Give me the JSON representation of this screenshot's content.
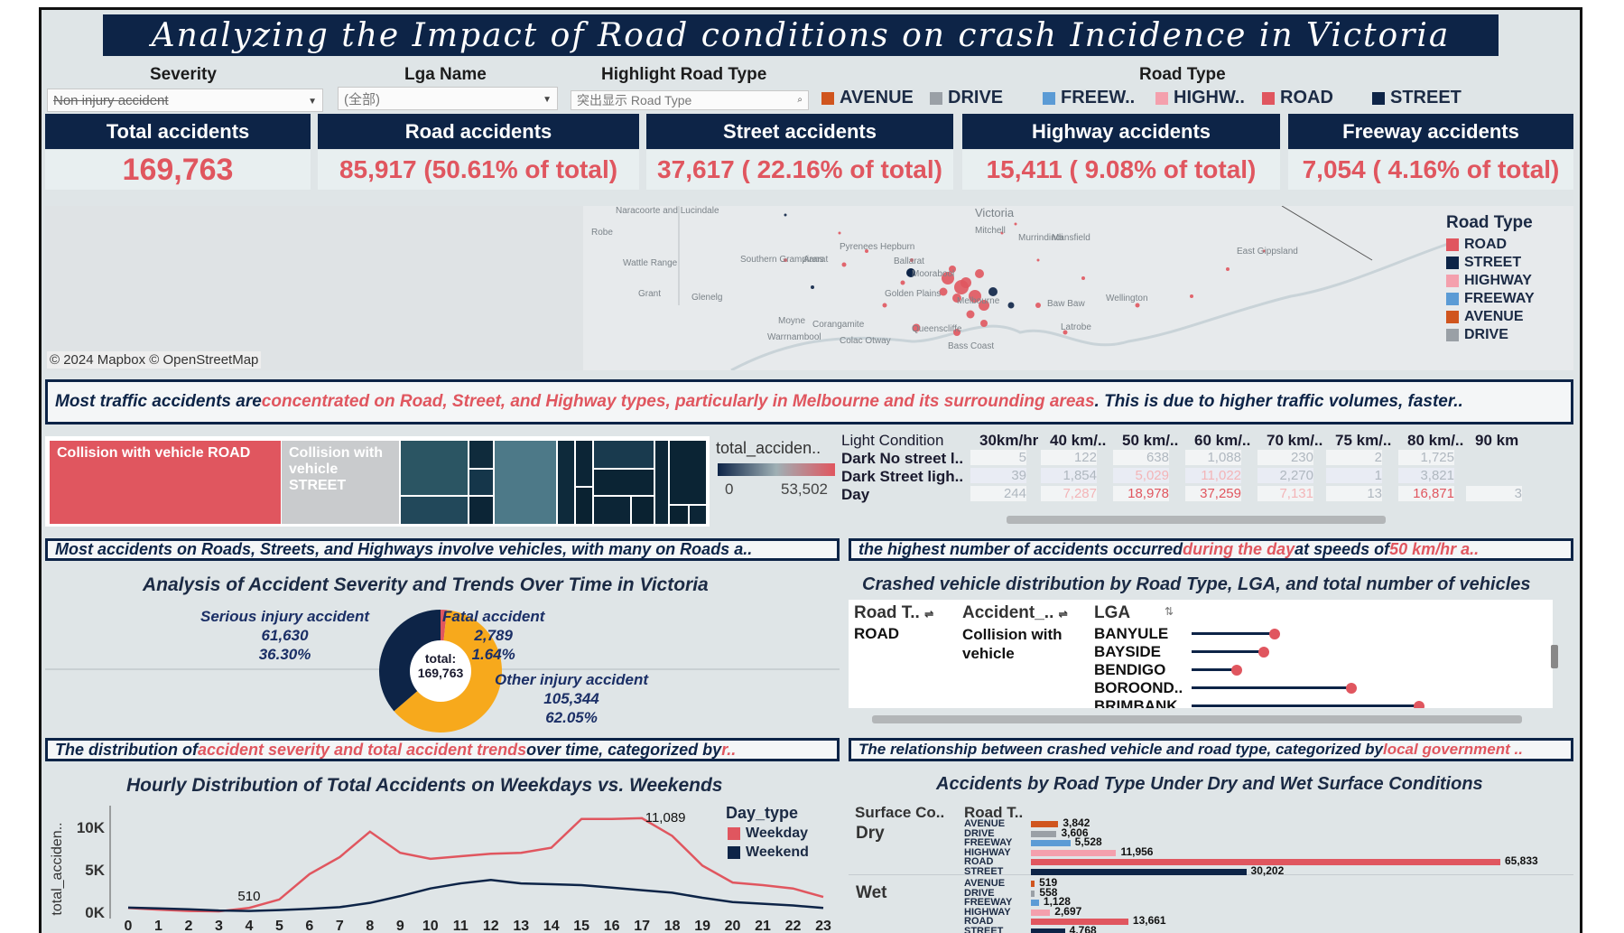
{
  "title": "Analyzing the Impact of Road conditions on crash Incidence in Victoria",
  "filters": {
    "severity_label": "Severity",
    "severity_value": "Non injury accident",
    "lga_label": "Lga Name",
    "lga_value": "(全部)",
    "highlight_label": "Highlight Road Type",
    "highlight_placeholder": "突出显示 Road Type",
    "road_type_label": "Road Type"
  },
  "road_type_legend": [
    {
      "label": "AVENUE",
      "color": "#d0551e"
    },
    {
      "label": "DRIVE",
      "color": "#9aa0a6"
    },
    {
      "label": "FREEW..",
      "color": "#5b9bd5"
    },
    {
      "label": "HIGHW..",
      "color": "#f4a0ad"
    },
    {
      "label": "ROAD",
      "color": "#e0565f"
    },
    {
      "label": "STREET",
      "color": "#0d2447"
    }
  ],
  "kpis": [
    {
      "title": "Total accidents",
      "value": "169,763"
    },
    {
      "title": "Road accidents",
      "value": "85,917 (50.61% of total)"
    },
    {
      "title": "Street accidents",
      "value": "37,617 ( 22.16% of total)"
    },
    {
      "title": "Highway accidents",
      "value": "15,411 ( 9.08% of total)"
    },
    {
      "title": "Freeway accidents",
      "value": "7,054 ( 4.16% of total)"
    }
  ],
  "map": {
    "attribution": "© 2024 Mapbox © OpenStreetMap",
    "legend_title": "Road Type",
    "legend": [
      {
        "label": "ROAD",
        "color": "#e0565f"
      },
      {
        "label": "STREET",
        "color": "#0d2447"
      },
      {
        "label": "HIGHWAY",
        "color": "#f4a0ad"
      },
      {
        "label": "FREEWAY",
        "color": "#5b9bd5"
      },
      {
        "label": "AVENUE",
        "color": "#d0551e"
      },
      {
        "label": "DRIVE",
        "color": "#9aa0a6"
      }
    ],
    "places": [
      "Victoria",
      "Robe",
      "Naracoorte and Lucindale",
      "Wattle Range",
      "Grant",
      "Glenelg",
      "Southern Grampians",
      "Ararat",
      "Pyrenees",
      "Hepburn",
      "Ballarat",
      "Moorabool",
      "Mitchell",
      "Murrindindi",
      "Mansfield",
      "East Gippsland",
      "Golden Plains",
      "Melbourne",
      "Baw Baw",
      "Wellington",
      "Moyne",
      "Warrnambool",
      "Corangamite",
      "Colac Otway",
      "Queenscliffe",
      "Latrobe",
      "Bass Coast"
    ]
  },
  "notes": {
    "map_note_a": "Most traffic accidents are ",
    "map_note_b": "concentrated on Road, Street, and Highway types, particularly in Melbourne and its surrounding areas",
    "map_note_c": ". This is due to higher traffic volumes, faster..",
    "treemap_note": "Most accidents on Roads, Streets, and Highways involve vehicles, with many on Roads a..",
    "speed_note_a": "the highest number of accidents occurred ",
    "speed_note_b": "during the day",
    "speed_note_c": " at speeds of ",
    "speed_note_d": "50 km/hr a..",
    "severity_note_a": "The distribution of ",
    "severity_note_b": "accident severity and total accident trends",
    "severity_note_c": " over time, categorized by ",
    "severity_note_d": "r..",
    "lga_note_a": "The relationship between crashed vehicle and road type, categorized by ",
    "lga_note_b": "local government .."
  },
  "treemap": {
    "label_road": "Collision with vehicle ROAD",
    "label_street": "Collision with vehicle STREET",
    "legend_title": "total_acciden..",
    "legend_min": "0",
    "legend_max": "53,502"
  },
  "speed_table": {
    "row_header": "Light Condition",
    "columns": [
      "30km/hr",
      "40 km/..",
      "50 km/..",
      "60 km/..",
      "70 km/..",
      "75 km/..",
      "80 km/..",
      "90 km"
    ],
    "rows": [
      {
        "label": "Dark No street l..",
        "values": [
          "5",
          "122",
          "638",
          "1,088",
          "230",
          "2",
          "1,725",
          ""
        ]
      },
      {
        "label": "Dark Street ligh..",
        "values": [
          "39",
          "1,854",
          "5,029",
          "11,022",
          "2,270",
          "1",
          "3,821",
          ""
        ]
      },
      {
        "label": "Day",
        "values": [
          "244",
          "7,287",
          "18,978",
          "37,259",
          "7,131",
          "13",
          "16,871",
          "3"
        ]
      }
    ]
  },
  "severity": {
    "title": "Analysis of Accident Severity and Trends Over Time in Victoria",
    "center_label": "total:",
    "center_value": "169,763",
    "serious_label": "Serious injury accident",
    "serious_value": "61,630",
    "serious_pct": "36.30%",
    "fatal_label": "Fatal accident",
    "fatal_value": "2,789",
    "fatal_pct": "1.64%",
    "other_label": "Other injury accident",
    "other_value": "105,344",
    "other_pct": "62.05%"
  },
  "lga_chart": {
    "title": "Crashed vehicle distribution by Road Type, LGA, and total number of vehicles",
    "col_road": "Road T..",
    "col_accident": "Accident_..",
    "col_lga": "LGA",
    "road_value": "ROAD",
    "accident_value": "Collision with vehicle",
    "lgas": [
      "BANYULE",
      "BAYSIDE",
      "BENDIGO",
      "BOROOND..",
      "BRIMBANK"
    ]
  },
  "chart_data": [
    {
      "type": "line",
      "title": "Hourly Distribution of Total Accidents on Weekdays vs. Weekends",
      "xlabel": "",
      "ylabel": "total_acciden..",
      "x": [
        0,
        1,
        2,
        3,
        4,
        5,
        6,
        7,
        8,
        9,
        10,
        11,
        12,
        13,
        14,
        15,
        16,
        17,
        18,
        19,
        20,
        21,
        22,
        23
      ],
      "ylim": [
        0,
        11500
      ],
      "yticks": [
        "10K",
        "5K",
        "0K"
      ],
      "legend_title": "Day_type",
      "series": [
        {
          "name": "Weekday",
          "color": "#e0565f",
          "values": [
            510,
            300,
            150,
            100,
            510,
            1500,
            4500,
            6500,
            9500,
            7000,
            6300,
            6600,
            6900,
            7000,
            7600,
            11000,
            11000,
            11089,
            9000,
            5500,
            3500,
            3200,
            2800,
            1800
          ]
        },
        {
          "name": "Weekend",
          "color": "#0d2447",
          "values": [
            550,
            450,
            350,
            200,
            150,
            250,
            400,
            600,
            1100,
            1900,
            2800,
            3400,
            3800,
            3400,
            3300,
            3200,
            2900,
            2600,
            2300,
            1700,
            1200,
            1000,
            800,
            500
          ]
        }
      ],
      "annotations": [
        "510",
        "11,089"
      ]
    },
    {
      "type": "bar",
      "title": "Accidents by Road Type Under Dry and Wet Surface Conditions",
      "col_surface": "Surface Co..",
      "col_road": "Road T..",
      "groups": [
        {
          "name": "Dry",
          "categories": [
            "AVENUE",
            "DRIVE",
            "FREEWAY",
            "HIGHWAY",
            "ROAD",
            "STREET"
          ],
          "values": [
            3842,
            3606,
            5528,
            11956,
            65833,
            30202
          ],
          "labels": [
            "3,842",
            "3,606",
            "5,528",
            "11,956",
            "65,833",
            "30,202"
          ]
        },
        {
          "name": "Wet",
          "categories": [
            "AVENUE",
            "DRIVE",
            "FREEWAY",
            "HIGHWAY",
            "ROAD",
            "STREET"
          ],
          "values": [
            519,
            558,
            1128,
            2697,
            13661,
            4768
          ],
          "labels": [
            "519",
            "558",
            "1,128",
            "2,697",
            "13,661",
            "4,768"
          ]
        }
      ],
      "colors": [
        "#d0551e",
        "#9aa0a6",
        "#5b9bd5",
        "#f4a0ad",
        "#e0565f",
        "#0d2447"
      ]
    }
  ]
}
